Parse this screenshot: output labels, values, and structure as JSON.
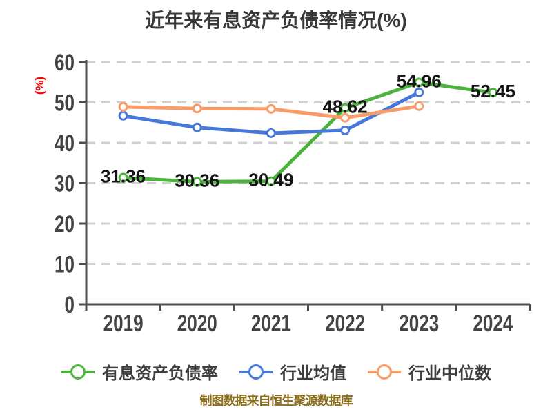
{
  "footer": "制图数据来自恒生聚源数据库",
  "colors": {
    "main_series": "#4cb33c",
    "industry_mean": "#4678d9",
    "industry_median": "#f99b68",
    "grid": "#d0d0d0",
    "axis": "#4d4d4d",
    "title_text": "#383838",
    "ylabel_text": "#ff0000",
    "footer_text": "#8a6d1a"
  },
  "chart_data": {
    "type": "line",
    "title": "近年来有息资产负债率情况(%)",
    "xlabel": "",
    "ylabel": "(%)",
    "categories": [
      "2019",
      "2020",
      "2021",
      "2022",
      "2023",
      "2024"
    ],
    "ylim": [
      0,
      60
    ],
    "yticks": [
      0,
      10,
      20,
      30,
      40,
      50,
      60
    ],
    "grid": "horizontal-dashed",
    "legend_position": "bottom",
    "series": [
      {
        "name": "有息资产负债率",
        "color": "#4cb33c",
        "values": [
          31.36,
          30.36,
          30.49,
          48.62,
          54.96,
          52.45
        ],
        "point_labels": [
          "31.36",
          "30.36",
          "30.49",
          "48.62",
          "54.96",
          "52.45"
        ]
      },
      {
        "name": "行业均值",
        "color": "#4678d9",
        "values": [
          46.7,
          43.8,
          42.4,
          43.1,
          52.5,
          null
        ]
      },
      {
        "name": "行业中位数",
        "color": "#f99b68",
        "values": [
          48.9,
          48.5,
          48.4,
          46.2,
          49.1,
          null
        ]
      }
    ]
  }
}
